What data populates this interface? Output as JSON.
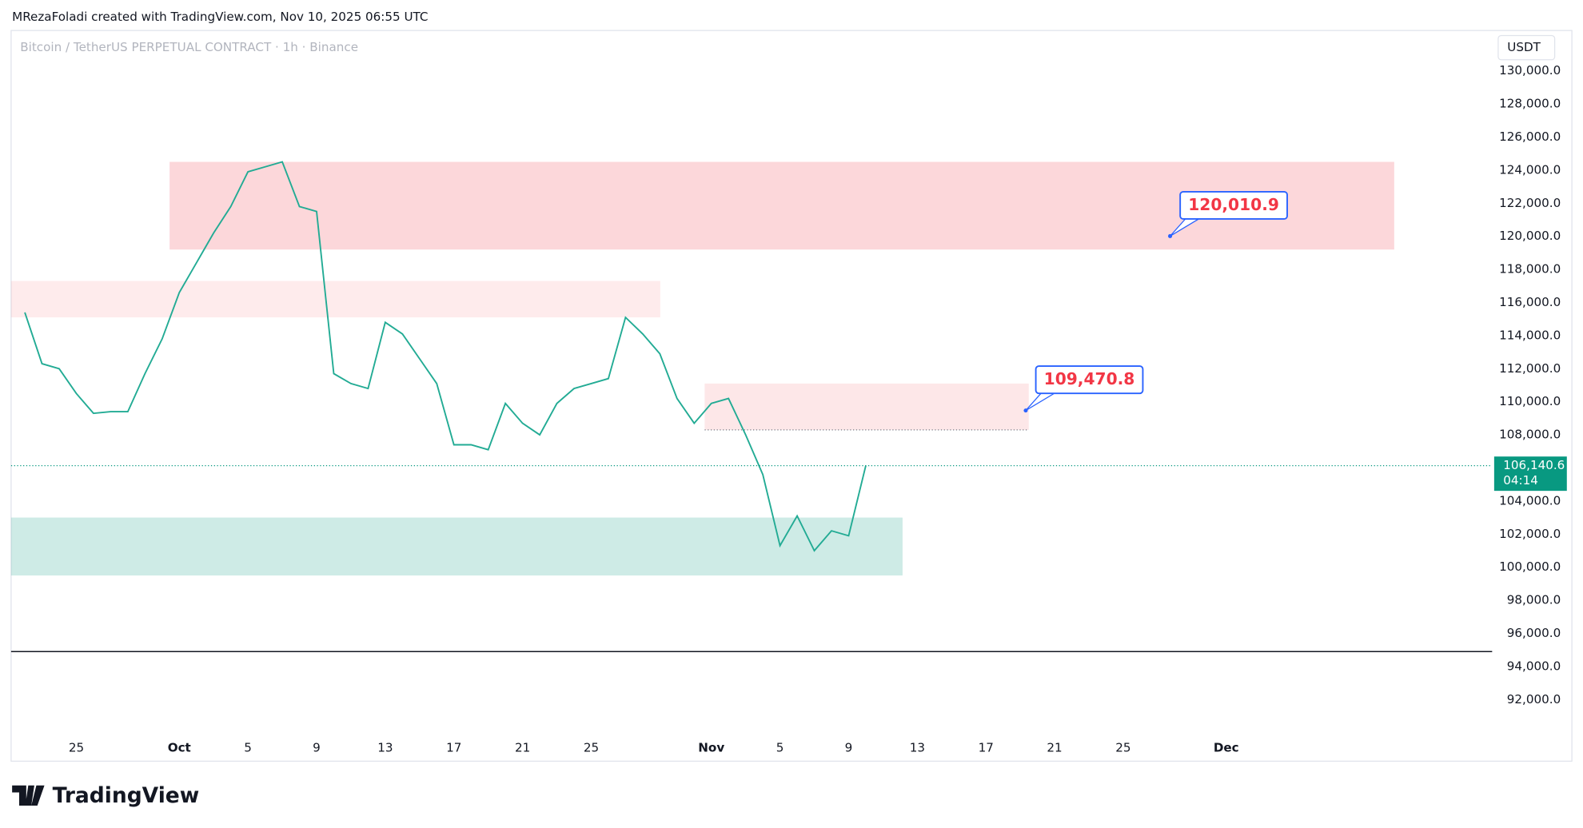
{
  "header": {
    "text": "MRezaFoladi created with TradingView.com, Nov 10, 2025 06:55 UTC"
  },
  "footer": {
    "logo": "TradingView"
  },
  "chart_data": {
    "type": "line",
    "title": "Bitcoin / TetherUS PERPETUAL CONTRACT · 1h · Binance",
    "currency": "USDT",
    "categories": [
      null,
      null,
      null,
      "25",
      null,
      null,
      null,
      null,
      null,
      "Oct",
      null,
      null,
      null,
      "5",
      null,
      null,
      null,
      "9",
      null,
      null,
      null,
      "13",
      null,
      null,
      null,
      "17",
      null,
      null,
      null,
      "21",
      null,
      null,
      null,
      "25",
      null,
      null,
      null,
      null,
      null,
      null,
      "Nov",
      null,
      null,
      null,
      "5",
      null,
      null,
      null,
      "9",
      null,
      null,
      null,
      "13",
      null,
      null,
      null,
      "17",
      null,
      null,
      null,
      "21",
      null,
      null,
      null,
      "25",
      null,
      null,
      null,
      null,
      null,
      "Dec",
      null,
      null,
      null,
      null,
      null,
      null,
      null,
      null,
      null,
      null,
      null,
      null,
      null,
      null,
      null
    ],
    "values": [
      115400,
      112300,
      112000,
      110500,
      109300,
      109400,
      109400,
      111700,
      113800,
      116600,
      118400,
      120200,
      121800,
      123900,
      124200,
      124500,
      121800,
      121500,
      111700,
      111100,
      110800,
      114800,
      114100,
      112600,
      111100,
      107400,
      107400,
      107100,
      109900,
      108700,
      108000,
      109900,
      110800,
      111100,
      111400,
      115100,
      114100,
      112900,
      110200,
      108700,
      109900,
      110200,
      108000,
      105600,
      101300,
      103100,
      101000,
      102200,
      101900,
      106140.6,
      null,
      null,
      null,
      null,
      null,
      null,
      null,
      null,
      null,
      null,
      null,
      null,
      null,
      null,
      null,
      null,
      null,
      null,
      null,
      null,
      null,
      null,
      null,
      null,
      null,
      null,
      null,
      null,
      null,
      null,
      null,
      null,
      null,
      null,
      null,
      null
    ],
    "color": "#22ab94",
    "ylim": [
      90350,
      132440
    ],
    "yticks": [
      {
        "value": 92000,
        "label": "92,000.0"
      },
      {
        "value": 94000,
        "label": "94,000.0"
      },
      {
        "value": 96000,
        "label": "96,000.0"
      },
      {
        "value": 98000,
        "label": "98,000.0"
      },
      {
        "value": 100000,
        "label": "100,000.0"
      },
      {
        "value": 102000,
        "label": "102,000.0"
      },
      {
        "value": 104000,
        "label": "104,000.0"
      },
      {
        "value": 108000,
        "label": "108,000.0"
      },
      {
        "value": 110000,
        "label": "110,000.0"
      },
      {
        "value": 112000,
        "label": "112,000.0"
      },
      {
        "value": 114000,
        "label": "114,000.0"
      },
      {
        "value": 116000,
        "label": "116,000.0"
      },
      {
        "value": 118000,
        "label": "118,000.0"
      },
      {
        "value": 120000,
        "label": "120,000.0"
      },
      {
        "value": 122000,
        "label": "122,000.0"
      },
      {
        "value": 124000,
        "label": "124,000.0"
      },
      {
        "value": 126000,
        "label": "126,000.0"
      },
      {
        "value": 128000,
        "label": "128,000.0"
      },
      {
        "value": 130000,
        "label": "130,000.0"
      }
    ],
    "last_price": {
      "value": 106140.6,
      "label": "106,140.6",
      "countdown": "04:14",
      "color": "#089981"
    },
    "zones": [
      {
        "top": 124500,
        "bottom": 119200,
        "color": "rgba(242,54,69,0.2)"
      },
      {
        "top": 117300,
        "bottom": 115100,
        "color": "rgba(242,54,69,0.1)"
      },
      {
        "top": 111100,
        "bottom": 108300,
        "color": "rgba(242,54,69,0.12)"
      },
      {
        "top": 103000,
        "bottom": 99500,
        "color": "rgba(8,153,129,0.2)"
      }
    ],
    "levels": [
      {
        "value": 94900,
        "color": "#131722"
      }
    ],
    "callouts": [
      {
        "value": 120010.9,
        "label": "120,010.9"
      },
      {
        "value": 109470.8,
        "label": "109,470.8"
      }
    ]
  }
}
